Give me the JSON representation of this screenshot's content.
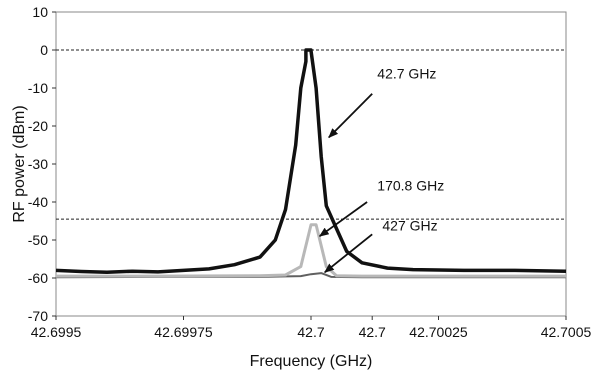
{
  "chart_data": {
    "type": "line",
    "xlabel": "Frequency (GHz)",
    "ylabel": "RF power (dBm)",
    "xlim": [
      42.6995,
      42.7005
    ],
    "ylim": [
      -70,
      10
    ],
    "x_ticks": [
      "42.6995",
      "42.69975",
      "42.7",
      "42.7",
      "42.70025",
      "42.7005"
    ],
    "x_tick_values": [
      42.6995,
      42.69975,
      42.7,
      42.70012,
      42.70025,
      42.7005
    ],
    "y_ticks": [
      "10",
      "0",
      "-10",
      "-20",
      "-30",
      "-40",
      "-50",
      "-60",
      "-70"
    ],
    "y_tick_values": [
      10,
      0,
      -10,
      -20,
      -30,
      -40,
      -50,
      -60,
      -70
    ],
    "reference_lines": [
      0,
      -44.5
    ],
    "series": [
      {
        "color": "#111111",
        "x": [
          42.6995,
          42.69955,
          42.6996,
          42.69965,
          42.6997,
          42.69975,
          42.6998,
          42.69985,
          42.6999,
          42.69993,
          42.69995,
          42.69997,
          42.69998,
          42.69999,
          42.69999,
          42.7,
          42.7,
          42.70001,
          42.70002,
          42.70003,
          42.70005,
          42.70007,
          42.7001,
          42.70015,
          42.7002,
          42.7003,
          42.7004,
          42.7005
        ],
        "y": [
          -58,
          -58.3,
          -58.5,
          -58.2,
          -58.4,
          -58,
          -57.6,
          -56.5,
          -54.5,
          -50,
          -42,
          -25,
          -10,
          -3,
          0,
          0,
          -0.2,
          -10,
          -28,
          -41,
          -47,
          -53,
          -56,
          -57.4,
          -57.8,
          -58,
          -58,
          -58.2
        ]
      },
      {
        "color": "#b8b8b8",
        "x": [
          42.6995,
          42.6997,
          42.6999,
          42.69995,
          42.69998,
          42.7,
          42.70001,
          42.70003,
          42.70005,
          42.7001,
          42.7005
        ],
        "y": [
          -59.5,
          -59.5,
          -59.4,
          -59.2,
          -57,
          -46,
          -46,
          -57,
          -59.4,
          -59.5,
          -59.5
        ]
      },
      {
        "color": "#606060",
        "x": [
          42.6995,
          42.6997,
          42.6999,
          42.69998,
          42.7,
          42.70002,
          42.70004,
          42.7001,
          42.7005
        ],
        "y": [
          -59.8,
          -59.7,
          -59.7,
          -59.5,
          -59,
          -58.7,
          -59.7,
          -59.8,
          -59.8
        ]
      }
    ],
    "annotations": [
      {
        "text": "42.7 GHz",
        "label_x": 42.70013,
        "label_y": -7.5,
        "tail_x": 42.70012,
        "tail_y": -11.5,
        "head_x": 42.700035,
        "head_y": -23
      },
      {
        "text": "170.8 GHz",
        "label_x": 42.70013,
        "label_y": -37,
        "tail_x": 42.70011,
        "tail_y": -40,
        "head_x": 42.700017,
        "head_y": -49
      },
      {
        "text": "427 GHz",
        "label_x": 42.70014,
        "label_y": -47.5,
        "tail_x": 42.70012,
        "tail_y": -48.5,
        "head_x": 42.700027,
        "head_y": -58.5
      }
    ]
  }
}
